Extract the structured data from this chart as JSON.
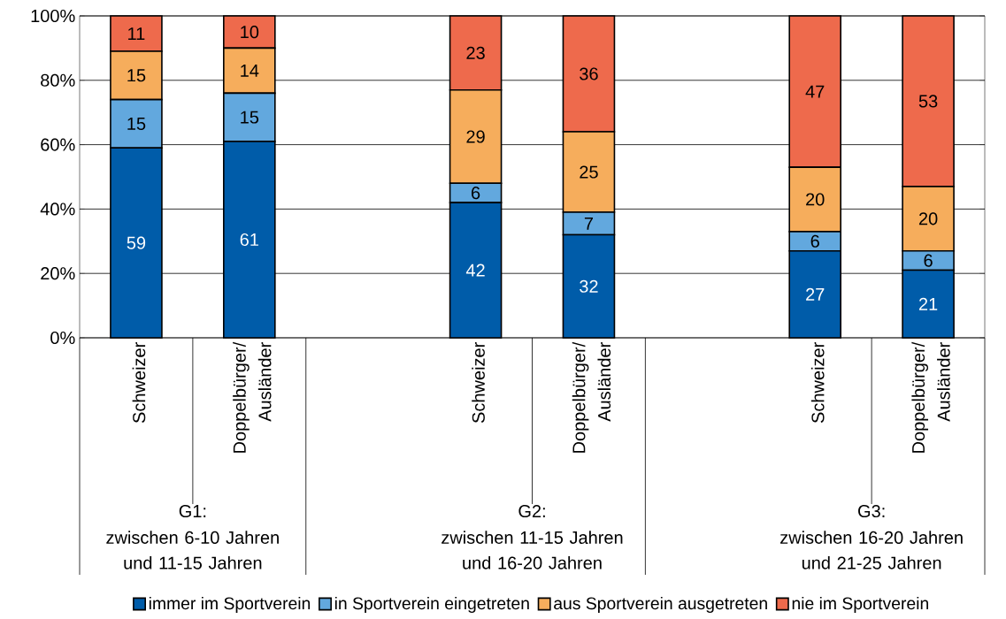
{
  "chart_data": {
    "type": "bar",
    "stacked": true,
    "categories": [
      "Schweizer",
      "Doppelbürger/ Ausländer",
      null,
      "Schweizer",
      "Doppelbürger/ Ausländer",
      null,
      "Schweizer",
      "Doppelbürger/ Ausländer"
    ],
    "series": [
      {
        "name": "immer im Sportverein",
        "color": "#005ca9",
        "values": [
          59,
          61,
          null,
          42,
          32,
          null,
          27,
          21
        ]
      },
      {
        "name": "in Sportverein eingetreten",
        "color": "#62a8de",
        "values": [
          15,
          15,
          null,
          6,
          7,
          null,
          6,
          6
        ]
      },
      {
        "name": "aus Sportverein ausgetreten",
        "color": "#f6ad5c",
        "values": [
          15,
          14,
          null,
          29,
          25,
          null,
          20,
          20
        ]
      },
      {
        "name": "nie im Sportverein",
        "color": "#ee6a4c",
        "values": [
          11,
          10,
          null,
          23,
          36,
          null,
          47,
          53
        ]
      }
    ],
    "ylim": [
      0,
      100
    ],
    "yticks": [
      {
        "value": 0,
        "label": "0%"
      },
      {
        "value": 20,
        "label": "20%"
      },
      {
        "value": 40,
        "label": "40%"
      },
      {
        "value": 60,
        "label": "60%"
      },
      {
        "value": 80,
        "label": "80%"
      },
      {
        "value": 100,
        "label": "100%"
      }
    ],
    "grid": "y",
    "legend": "bottom",
    "data_labels": true,
    "annotations": [
      "G1:",
      "zwischen 6-10 Jahren und 11-15 Jahren",
      "G2:",
      "zwischen 11-15 Jahren und 16-20 Jahren",
      "G3:",
      "zwischen 16-20 Jahren und 21-25 Jahren"
    ]
  }
}
